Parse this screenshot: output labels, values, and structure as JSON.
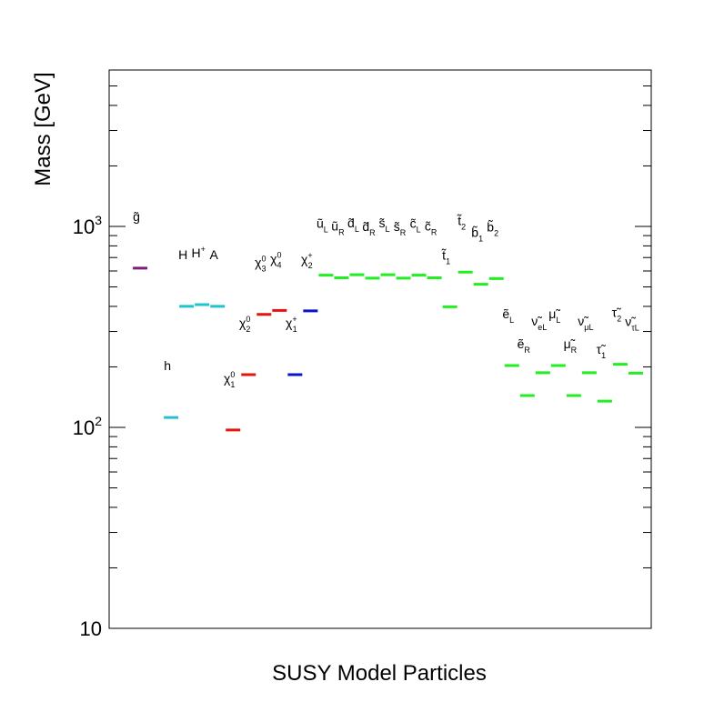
{
  "chart_data": {
    "type": "scatter",
    "title": "",
    "xlabel": "SUSY Model Particles",
    "ylabel": "Mass [GeV]",
    "y_scale": "log",
    "ylim": [
      10,
      6000
    ],
    "grid": false,
    "legend": "none",
    "y_ticks": [
      {
        "value": 10,
        "base": "10",
        "exp": ""
      },
      {
        "value": 100,
        "base": "10",
        "exp": "2"
      },
      {
        "value": 1000,
        "base": "10",
        "exp": "3"
      }
    ],
    "colors": {
      "gluino": "#7a1f7a",
      "higgs": "#22c4cc",
      "neutralino": "#e3140f",
      "chargino": "#0a14c8",
      "sfermion": "#22ee22"
    },
    "particles": [
      {
        "id": "gluino",
        "base": "g",
        "tilde": true,
        "sup": "",
        "sub": "",
        "mass": 620,
        "group": "gluino",
        "slot": 1
      },
      {
        "id": "h",
        "base": "h",
        "tilde": false,
        "sup": "",
        "sub": "",
        "mass": 112,
        "group": "higgs",
        "slot": 3
      },
      {
        "id": "H",
        "base": "H",
        "tilde": false,
        "sup": "",
        "sub": "",
        "mass": 400,
        "group": "higgs",
        "slot": 4
      },
      {
        "id": "Hplus",
        "base": "H",
        "tilde": false,
        "sup": "+",
        "sub": "",
        "mass": 408,
        "group": "higgs",
        "slot": 5
      },
      {
        "id": "A",
        "base": "A",
        "tilde": false,
        "sup": "",
        "sub": "",
        "mass": 400,
        "group": "higgs",
        "slot": 6
      },
      {
        "id": "chi10",
        "base": "χ",
        "tilde": false,
        "sup": "0",
        "sub": "1",
        "mass": 97,
        "group": "neutralino",
        "slot": 7
      },
      {
        "id": "chi20",
        "base": "χ",
        "tilde": false,
        "sup": "0",
        "sub": "2",
        "mass": 183,
        "group": "neutralino",
        "slot": 8
      },
      {
        "id": "chi30",
        "base": "χ",
        "tilde": false,
        "sup": "0",
        "sub": "3",
        "mass": 365,
        "group": "neutralino",
        "slot": 9
      },
      {
        "id": "chi40",
        "base": "χ",
        "tilde": false,
        "sup": "0",
        "sub": "4",
        "mass": 382,
        "group": "neutralino",
        "slot": 10
      },
      {
        "id": "chi1p",
        "base": "χ",
        "tilde": false,
        "sup": "+",
        "sub": "1",
        "mass": 183,
        "group": "chargino",
        "slot": 11
      },
      {
        "id": "chi2p",
        "base": "χ",
        "tilde": false,
        "sup": "+",
        "sub": "2",
        "mass": 380,
        "group": "chargino",
        "slot": 12
      },
      {
        "id": "uL",
        "base": "u",
        "tilde": true,
        "sup": "",
        "sub": "L",
        "mass": 572,
        "group": "sfermion",
        "slot": 13
      },
      {
        "id": "uR",
        "base": "u",
        "tilde": true,
        "sup": "",
        "sub": "R",
        "mass": 555,
        "group": "sfermion",
        "slot": 14
      },
      {
        "id": "dL",
        "base": "d",
        "tilde": true,
        "sup": "",
        "sub": "L",
        "mass": 575,
        "group": "sfermion",
        "slot": 15
      },
      {
        "id": "dR",
        "base": "d",
        "tilde": true,
        "sup": "",
        "sub": "R",
        "mass": 553,
        "group": "sfermion",
        "slot": 16
      },
      {
        "id": "sL",
        "base": "s",
        "tilde": true,
        "sup": "",
        "sub": "L",
        "mass": 575,
        "group": "sfermion",
        "slot": 17
      },
      {
        "id": "sR",
        "base": "s",
        "tilde": true,
        "sup": "",
        "sub": "R",
        "mass": 553,
        "group": "sfermion",
        "slot": 18
      },
      {
        "id": "cL",
        "base": "c",
        "tilde": true,
        "sup": "",
        "sub": "L",
        "mass": 572,
        "group": "sfermion",
        "slot": 19
      },
      {
        "id": "cR",
        "base": "c",
        "tilde": true,
        "sup": "",
        "sub": "R",
        "mass": 555,
        "group": "sfermion",
        "slot": 20
      },
      {
        "id": "t1",
        "base": "t",
        "tilde": true,
        "sup": "",
        "sub": "1",
        "mass": 398,
        "group": "sfermion",
        "slot": 21
      },
      {
        "id": "t2",
        "base": "t",
        "tilde": true,
        "sup": "",
        "sub": "2",
        "mass": 592,
        "group": "sfermion",
        "slot": 22
      },
      {
        "id": "b1",
        "base": "b",
        "tilde": true,
        "sup": "",
        "sub": "1",
        "mass": 515,
        "group": "sfermion",
        "slot": 23
      },
      {
        "id": "b2",
        "base": "b",
        "tilde": true,
        "sup": "",
        "sub": "2",
        "mass": 550,
        "group": "sfermion",
        "slot": 24
      },
      {
        "id": "eL",
        "base": "e",
        "tilde": true,
        "sup": "",
        "sub": "L",
        "mass": 203,
        "group": "sfermion",
        "slot": 25
      },
      {
        "id": "eR",
        "base": "e",
        "tilde": true,
        "sup": "",
        "sub": "R",
        "mass": 144,
        "group": "sfermion",
        "slot": 26
      },
      {
        "id": "nueL",
        "base": "ν",
        "tilde": true,
        "sup": "",
        "sub": "eL",
        "mass": 187,
        "group": "sfermion",
        "slot": 27
      },
      {
        "id": "muL",
        "base": "μ",
        "tilde": true,
        "sup": "",
        "sub": "L",
        "mass": 203,
        "group": "sfermion",
        "slot": 28
      },
      {
        "id": "muR",
        "base": "μ",
        "tilde": true,
        "sup": "",
        "sub": "R",
        "mass": 144,
        "group": "sfermion",
        "slot": 29
      },
      {
        "id": "numuL",
        "base": "ν",
        "tilde": true,
        "sup": "",
        "sub": "μL",
        "mass": 187,
        "group": "sfermion",
        "slot": 30
      },
      {
        "id": "tau1",
        "base": "τ",
        "tilde": true,
        "sup": "",
        "sub": "1",
        "mass": 135,
        "group": "sfermion",
        "slot": 31
      },
      {
        "id": "tau2",
        "base": "τ",
        "tilde": true,
        "sup": "",
        "sub": "2",
        "mass": 206,
        "group": "sfermion",
        "slot": 32
      },
      {
        "id": "nutauL",
        "base": "ν",
        "tilde": true,
        "sup": "",
        "sub": "τL",
        "mass": 186,
        "group": "sfermion",
        "slot": 33
      }
    ]
  }
}
